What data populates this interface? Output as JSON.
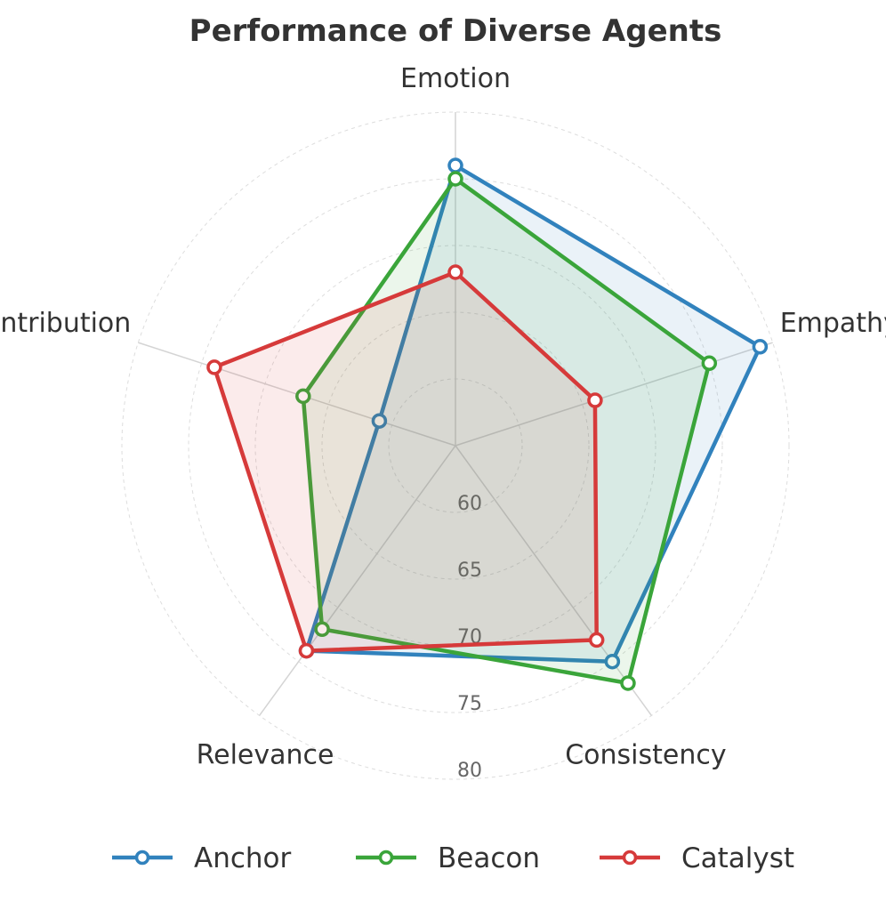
{
  "chart_data": {
    "type": "radar",
    "title": "Performance of Diverse Agents",
    "axes": [
      "Emotion",
      "Empathy",
      "Consistency",
      "Relevance",
      "Contribution"
    ],
    "r_ticks": [
      60,
      65,
      70,
      75,
      80
    ],
    "r_range": [
      55,
      80
    ],
    "grid": true,
    "legend_position": "bottom",
    "series": [
      {
        "name": "Anchor",
        "color": "#3182bd",
        "values": [
          76,
          79,
          75,
          74,
          61
        ]
      },
      {
        "name": "Beacon",
        "color": "#3aa53a",
        "values": [
          75,
          75,
          77,
          72,
          67
        ]
      },
      {
        "name": "Catalyst",
        "color": "#d63a3a",
        "values": [
          68,
          66,
          73,
          74,
          74
        ]
      }
    ]
  }
}
